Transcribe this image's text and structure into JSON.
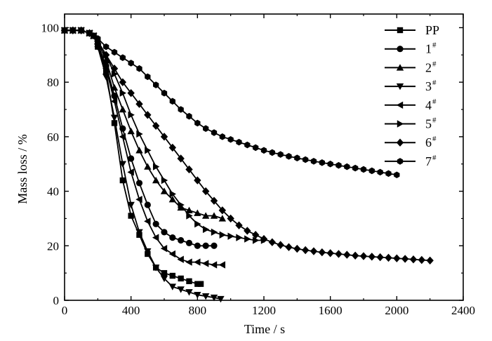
{
  "chart_data": {
    "type": "line",
    "title": "",
    "xlabel": "Time / s",
    "ylabel": "Mass loss / %",
    "xlim": [
      0,
      2400
    ],
    "ylim": [
      0,
      105
    ],
    "xticks": [
      "0",
      "400",
      "800",
      "1200",
      "1600",
      "2000",
      "2400"
    ],
    "yticks": [
      "0",
      "20",
      "40",
      "60",
      "80",
      "100"
    ],
    "grid": false,
    "legend_position": "top-right",
    "colors": {
      "line": "#000000",
      "background": "#ffffff"
    },
    "series": [
      {
        "name": "PP",
        "sup": "",
        "marker": "square",
        "x": [
          0,
          50,
          100,
          150,
          175,
          200,
          250,
          300,
          350,
          400,
          450,
          500,
          550,
          600,
          650,
          700,
          750,
          800,
          820
        ],
        "y": [
          99,
          99,
          99,
          98,
          97,
          93,
          84,
          65,
          44,
          31,
          24,
          17,
          12,
          10,
          9,
          8,
          7,
          6,
          6
        ]
      },
      {
        "name": "1",
        "sup": "#",
        "marker": "circle",
        "x": [
          0,
          50,
          100,
          150,
          175,
          200,
          250,
          300,
          350,
          400,
          450,
          500,
          550,
          600,
          650,
          700,
          750,
          800,
          850,
          900
        ],
        "y": [
          99,
          99,
          99,
          98,
          97,
          94,
          86,
          75,
          63,
          52,
          43,
          35,
          28,
          25,
          23,
          22,
          21,
          20,
          20,
          20
        ]
      },
      {
        "name": "2",
        "sup": "#",
        "marker": "triangle-up",
        "x": [
          0,
          50,
          100,
          150,
          175,
          200,
          250,
          300,
          350,
          400,
          450,
          500,
          550,
          600,
          650,
          700,
          750,
          800,
          850,
          900,
          950
        ],
        "y": [
          99,
          99,
          99,
          98,
          97,
          95,
          88,
          78,
          70,
          62,
          55,
          49,
          44,
          40,
          37,
          34,
          33,
          32,
          31,
          31,
          30
        ]
      },
      {
        "name": "3",
        "sup": "#",
        "marker": "triangle-down",
        "x": [
          0,
          50,
          100,
          150,
          175,
          200,
          250,
          300,
          350,
          400,
          450,
          500,
          550,
          600,
          650,
          700,
          750,
          800,
          850,
          900,
          940
        ],
        "y": [
          99,
          99,
          99,
          98,
          97,
          93,
          82,
          67,
          50,
          35,
          25,
          18,
          12,
          8,
          5,
          4,
          3,
          2,
          1.5,
          1,
          0.5
        ]
      },
      {
        "name": "4",
        "sup": "#",
        "marker": "triangle-left",
        "x": [
          0,
          50,
          100,
          150,
          175,
          200,
          250,
          300,
          350,
          400,
          450,
          500,
          550,
          600,
          650,
          700,
          750,
          800,
          850,
          900,
          950
        ],
        "y": [
          99,
          99,
          99,
          98,
          97,
          93,
          85,
          73,
          60,
          47,
          37,
          29,
          23,
          19,
          17,
          15,
          14,
          14,
          13.5,
          13,
          13
        ]
      },
      {
        "name": "5",
        "sup": "#",
        "marker": "triangle-right",
        "x": [
          0,
          50,
          100,
          150,
          175,
          200,
          250,
          300,
          350,
          400,
          450,
          500,
          550,
          600,
          650,
          700,
          750,
          800,
          850,
          900,
          950,
          1000,
          1050,
          1100,
          1150,
          1200
        ],
        "y": [
          99,
          99,
          99,
          98,
          97,
          95,
          90,
          83,
          76,
          68,
          61,
          55,
          49,
          44,
          39,
          35,
          31,
          28,
          26,
          25,
          24,
          23.5,
          23,
          22.5,
          22,
          22
        ]
      },
      {
        "name": "6",
        "sup": "#",
        "marker": "diamond",
        "x": [
          0,
          50,
          100,
          150,
          200,
          250,
          300,
          350,
          400,
          450,
          500,
          550,
          600,
          650,
          700,
          750,
          800,
          850,
          900,
          950,
          1000,
          1050,
          1100,
          1150,
          1200,
          1250,
          1300,
          1350,
          1400,
          1450,
          1500,
          1550,
          1600,
          1650,
          1700,
          1750,
          1800,
          1850,
          1900,
          1950,
          2000,
          2050,
          2100,
          2150,
          2200
        ],
        "y": [
          99,
          99,
          99,
          98,
          95,
          90,
          85,
          80,
          76,
          72,
          68,
          64,
          60,
          56,
          52,
          48,
          44,
          40,
          36.5,
          33,
          30,
          27.5,
          25.5,
          24,
          22.5,
          21.3,
          20.3,
          19.5,
          18.9,
          18.4,
          18,
          17.6,
          17.3,
          17,
          16.7,
          16.4,
          16.2,
          16,
          15.8,
          15.6,
          15.4,
          15.2,
          15,
          14.8,
          14.6
        ]
      },
      {
        "name": "7",
        "sup": "#",
        "marker": "hexagon",
        "x": [
          0,
          50,
          100,
          150,
          200,
          250,
          300,
          350,
          400,
          450,
          500,
          550,
          600,
          650,
          700,
          750,
          800,
          850,
          900,
          950,
          1000,
          1050,
          1100,
          1150,
          1200,
          1250,
          1300,
          1350,
          1400,
          1450,
          1500,
          1550,
          1600,
          1650,
          1700,
          1750,
          1800,
          1850,
          1900,
          1950,
          2000
        ],
        "y": [
          99,
          99,
          99,
          98,
          96,
          93,
          91,
          89,
          87,
          85,
          82,
          79,
          76,
          73,
          70,
          67.5,
          65,
          63,
          61.5,
          60,
          59,
          58,
          57,
          56,
          55,
          54.2,
          53.5,
          52.8,
          52.2,
          51.6,
          51,
          50.5,
          50,
          49.5,
          49,
          48.5,
          48,
          47.5,
          47,
          46.5,
          46
        ]
      }
    ]
  }
}
